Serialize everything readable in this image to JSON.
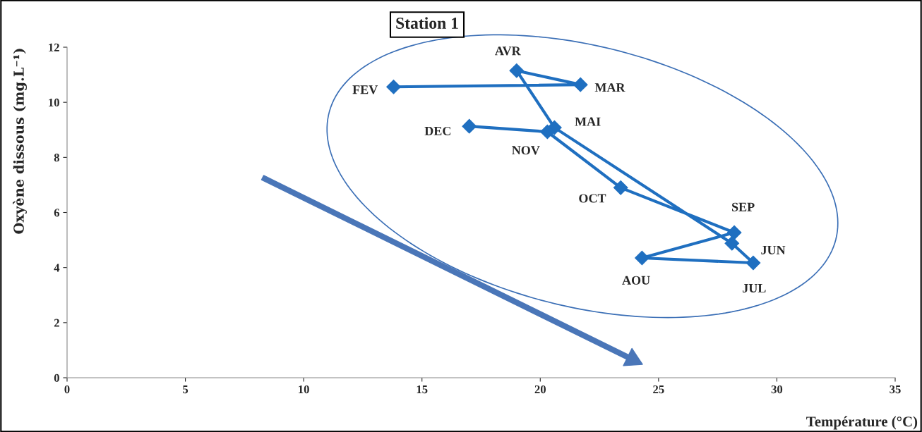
{
  "chart_data": {
    "type": "line",
    "title": "Station 1",
    "xlabel": "Température (°C)",
    "ylabel": "Oxyène dissous (mg.L⁻¹)",
    "series": [
      {
        "color": "#1f6fc0",
        "x": [
          13.8,
          21.7,
          19.0,
          20.6,
          28.1,
          29.0,
          24.3,
          28.2,
          23.4,
          20.3,
          17.0
        ],
        "values": [
          10.56,
          10.64,
          11.15,
          9.08,
          4.88,
          4.17,
          4.35,
          5.27,
          6.9,
          8.93,
          9.13
        ]
      }
    ],
    "annotations": [
      {
        "text": "FEV",
        "x": 13.8,
        "y": 10.56
      },
      {
        "text": "MAR",
        "x": 21.7,
        "y": 10.64
      },
      {
        "text": "AVR",
        "x": 19.0,
        "y": 11.15
      },
      {
        "text": "MAI",
        "x": 20.6,
        "y": 9.08
      },
      {
        "text": "JUN",
        "x": 28.1,
        "y": 4.88
      },
      {
        "text": "JUL",
        "x": 29.0,
        "y": 4.17
      },
      {
        "text": "AOU",
        "x": 24.3,
        "y": 4.35
      },
      {
        "text": "SEP",
        "x": 28.2,
        "y": 5.27
      },
      {
        "text": "OCT",
        "x": 23.4,
        "y": 6.9
      },
      {
        "text": "NOV",
        "x": 20.3,
        "y": 8.93
      },
      {
        "text": "DEC",
        "x": 17.0,
        "y": 9.13
      }
    ],
    "xlim": [
      0,
      35
    ],
    "xticks": [
      0,
      5,
      10,
      15,
      20,
      25,
      30,
      35
    ],
    "ylim": [
      0,
      12
    ],
    "yticks": [
      0,
      2,
      4,
      6,
      8,
      10,
      12
    ],
    "grid": false,
    "marker": "diamond",
    "line_style": "solid"
  }
}
